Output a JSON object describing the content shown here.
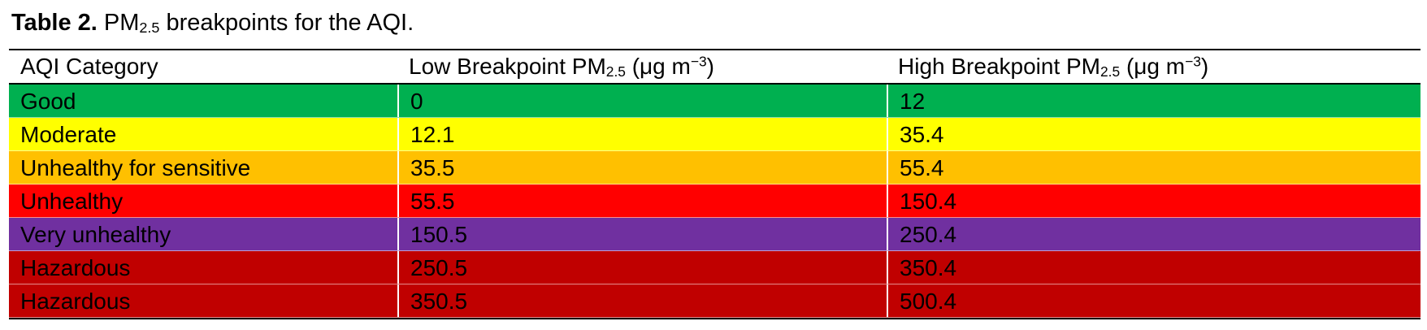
{
  "caption": {
    "label": "Table 2.",
    "text_before": "PM",
    "subscript": "2.5",
    "text_after": "breakpoints for the AQI."
  },
  "table": {
    "headers": {
      "category": "AQI Category",
      "low_prefix": "Low Breakpoint PM",
      "low_sub": "2.5",
      "low_unit_open": "(μg m",
      "low_unit_sup": "−3",
      "low_unit_close": ")",
      "high_prefix": "High Breakpoint PM",
      "high_sub": "2.5",
      "high_unit_open": "(μg m",
      "high_unit_sup": "−3",
      "high_unit_close": ")"
    },
    "rows": [
      {
        "category": "Good",
        "low": "0",
        "high": "12",
        "color": "#00b050"
      },
      {
        "category": "Moderate",
        "low": "12.1",
        "high": "35.4",
        "color": "#ffff00"
      },
      {
        "category": "Unhealthy for sensitive",
        "low": "35.5",
        "high": "55.4",
        "color": "#ffc000"
      },
      {
        "category": "Unhealthy",
        "low": "55.5",
        "high": "150.4",
        "color": "#ff0000"
      },
      {
        "category": "Very unhealthy",
        "low": "150.5",
        "high": "250.4",
        "color": "#7030a0"
      },
      {
        "category": "Hazardous",
        "low": "250.5",
        "high": "350.4",
        "color": "#c00000"
      },
      {
        "category": "Hazardous",
        "low": "350.5",
        "high": "500.4",
        "color": "#c00000"
      }
    ]
  }
}
